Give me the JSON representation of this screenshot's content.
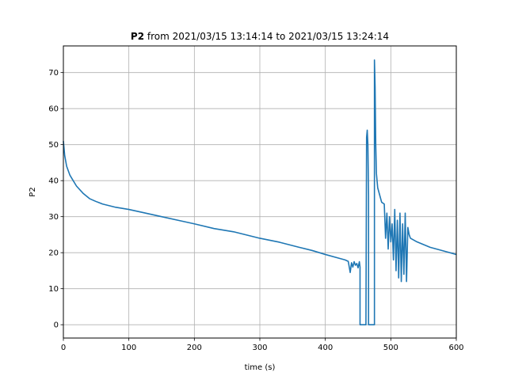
{
  "chart_data": {
    "type": "line",
    "title": {
      "bold": "P2",
      "rest": " from 2021/03/15 13:14:14 to 2021/03/15 13:24:14"
    },
    "xlabel": "time (s)",
    "ylabel": "P2",
    "xlim": [
      0,
      600
    ],
    "ylim": [
      -3.7,
      77.4
    ],
    "x_ticks": [
      0,
      100,
      200,
      300,
      400,
      500,
      600
    ],
    "y_ticks": [
      0,
      10,
      20,
      30,
      40,
      50,
      60,
      70
    ],
    "grid": true,
    "legend": "none",
    "series": [
      {
        "color": "#1f77b4",
        "x": [
          0,
          2,
          5,
          10,
          15,
          20,
          30,
          40,
          50,
          60,
          80,
          100,
          120,
          150,
          180,
          200,
          230,
          260,
          300,
          330,
          360,
          380,
          400,
          420,
          430,
          435,
          438,
          440,
          442,
          444,
          446,
          448,
          450,
          452,
          453,
          453,
          462,
          462,
          463,
          464,
          465,
          466,
          466,
          475,
          475,
          476,
          477,
          478,
          479,
          480,
          483,
          486,
          490,
          492,
          494,
          496,
          498,
          500,
          502,
          504,
          506,
          508,
          510,
          512,
          514,
          516,
          518,
          520,
          522,
          524,
          526,
          528,
          530,
          540,
          560,
          580,
          600
        ],
        "y": [
          51,
          47,
          44,
          41.5,
          40,
          38.5,
          36.5,
          35,
          34.2,
          33.5,
          32.6,
          32,
          31.2,
          30,
          28.8,
          28,
          26.7,
          25.8,
          24,
          22.9,
          21.5,
          20.6,
          19.5,
          18.5,
          18,
          17.6,
          14.5,
          17.2,
          16,
          17.5,
          16.5,
          17,
          15.8,
          17.5,
          16,
          0,
          0,
          0,
          52,
          54,
          50,
          36,
          0,
          0,
          73.5,
          66,
          50,
          42,
          40,
          38,
          36,
          34,
          33.5,
          24,
          31,
          21,
          30,
          23,
          28,
          18,
          32,
          15,
          29,
          13,
          31,
          12,
          28,
          14,
          31,
          12,
          27,
          25,
          24,
          23,
          21.5,
          20.5,
          19.5
        ]
      }
    ]
  }
}
